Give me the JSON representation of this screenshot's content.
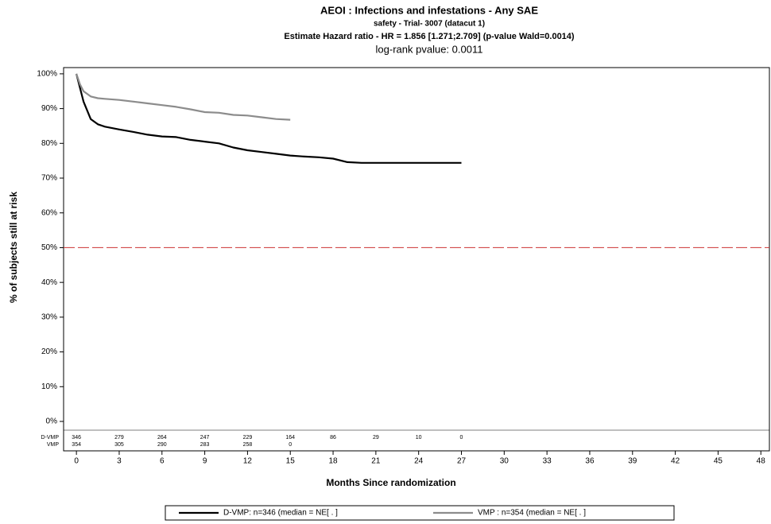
{
  "chart_data": {
    "type": "line",
    "title": "AEOI : Infections and infestations -  Any SAE",
    "subtitle": "safety -  Trial- 3007 (datacut 1)",
    "annotations": [
      "Estimate Hazard ratio -  HR = 1.856 [1.271;2.709] (p-value Wald=0.0014)",
      "log-rank pvalue: 0.0011"
    ],
    "x_label": "Months Since randomization",
    "y_label": "% of subjects still at risk",
    "x": [
      0,
      0.25,
      0.5,
      1,
      1.5,
      2,
      3,
      4,
      5,
      6,
      7,
      8,
      9,
      10,
      11,
      12,
      13,
      14,
      15,
      16,
      17,
      18,
      19,
      20,
      21,
      22,
      23,
      24,
      25,
      26,
      27
    ],
    "series": [
      {
        "name": "D-VMP: n=346 (median = NE[        .        ]",
        "color": "#000000",
        "values": [
          100,
          96,
          92,
          87,
          85.5,
          84.8,
          84,
          83.3,
          82.5,
          82,
          81.8,
          81,
          80.5,
          80,
          78.8,
          78,
          77.5,
          77,
          76.5,
          76.2,
          76,
          75.6,
          74.6,
          74.4,
          74.4,
          74.4,
          74.4,
          74.4,
          74.4,
          74.4,
          74.4
        ]
      },
      {
        "name": "VMP : n=354 (median = NE[        .        ]",
        "color": "#8c8c8c",
        "values": [
          100,
          97,
          95,
          93.5,
          93,
          92.8,
          92.5,
          92,
          91.5,
          91,
          90.5,
          89.8,
          89,
          88.8,
          88.2,
          88,
          87.5,
          87,
          86.8,
          null,
          null,
          null,
          null,
          null,
          null,
          null,
          null,
          null,
          null,
          null,
          null
        ]
      }
    ],
    "reference_line": 50,
    "reference_color": "#cc3333",
    "xlim": [
      -0.9,
      48.6
    ],
    "xticks": [
      0,
      3,
      6,
      9,
      12,
      15,
      18,
      21,
      24,
      27,
      30,
      33,
      36,
      39,
      42,
      45,
      48
    ],
    "ylim": [
      -1.6,
      101.8
    ],
    "yticks": [
      {
        "value": 0,
        "label": "0%"
      },
      {
        "value": 10,
        "label": "10%"
      },
      {
        "value": 20,
        "label": "20%"
      },
      {
        "value": 30,
        "label": "30%"
      },
      {
        "value": 40,
        "label": "40%"
      },
      {
        "value": 50,
        "label": "50%"
      },
      {
        "value": 60,
        "label": "60%"
      },
      {
        "value": 70,
        "label": "70%"
      },
      {
        "value": 80,
        "label": "80%"
      },
      {
        "value": 90,
        "label": "90%"
      },
      {
        "value": 100,
        "label": "100%"
      }
    ],
    "at_risk": {
      "x": [
        0,
        3,
        6,
        9,
        12,
        15,
        18,
        21,
        24,
        27
      ],
      "rows": [
        {
          "label": "D-VMP",
          "color": "#000000",
          "values": [
            346,
            279,
            264,
            247,
            229,
            164,
            86,
            29,
            10,
            0
          ]
        },
        {
          "label": "VMP",
          "color": "#9a9a9a",
          "values": [
            354,
            305,
            290,
            283,
            258,
            0,
            null,
            null,
            null,
            null
          ]
        }
      ]
    }
  }
}
